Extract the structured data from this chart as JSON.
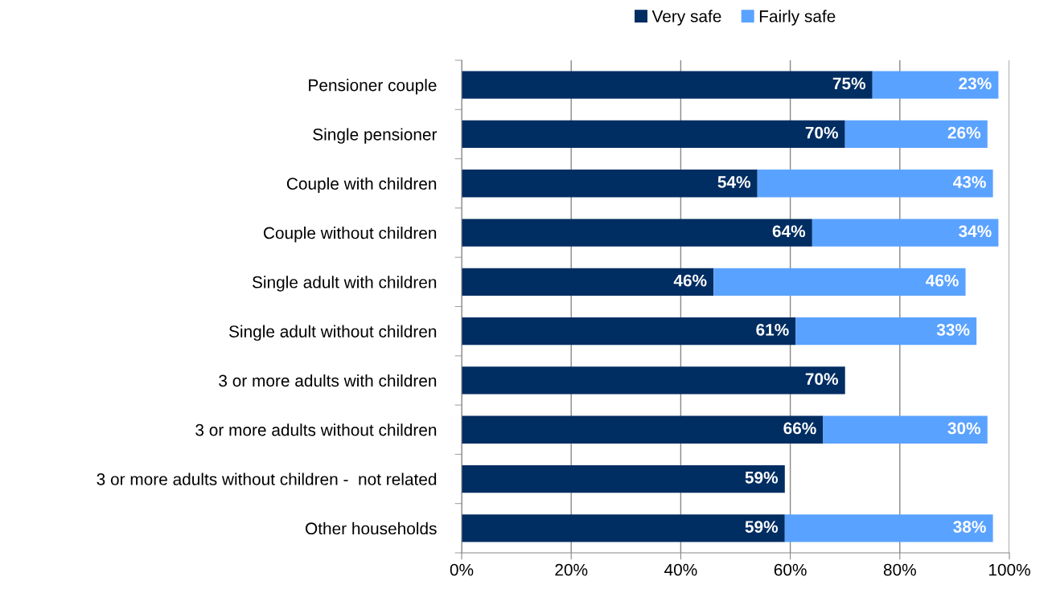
{
  "chart_data": {
    "type": "bar",
    "orientation": "horizontal",
    "stacked": true,
    "categories": [
      "Pensioner couple",
      "Single pensioner",
      "Couple with children",
      "Couple without children",
      "Single adult with children",
      "Single adult without children",
      "3 or more adults with children",
      "3 or more adults without children",
      "3 or more adults without children -  not related",
      "Other households"
    ],
    "series": [
      {
        "name": "Very safe",
        "color": "#002d62",
        "values": [
          75,
          70,
          54,
          64,
          46,
          61,
          70,
          66,
          59,
          59
        ],
        "value_labels": [
          "75%",
          "70%",
          "54%",
          "64%",
          "46%",
          "61%",
          "70%",
          "66%",
          "59%",
          "59%"
        ]
      },
      {
        "name": "Fairly safe",
        "color": "#5aa2ff",
        "values": [
          23,
          26,
          43,
          34,
          46,
          33,
          null,
          30,
          null,
          38
        ],
        "value_labels": [
          "23%",
          "26%",
          "43%",
          "34%",
          "46%",
          "33%",
          null,
          "30%",
          null,
          "38%"
        ]
      }
    ],
    "xlim": [
      0,
      100
    ],
    "xticks": [
      {
        "value": 0,
        "label": "0%"
      },
      {
        "value": 20,
        "label": "20%"
      },
      {
        "value": 40,
        "label": "40%"
      },
      {
        "value": 60,
        "label": "60%"
      },
      {
        "value": 80,
        "label": "80%"
      },
      {
        "value": 100,
        "label": "100%"
      }
    ],
    "grid": "x",
    "legend": "top"
  }
}
